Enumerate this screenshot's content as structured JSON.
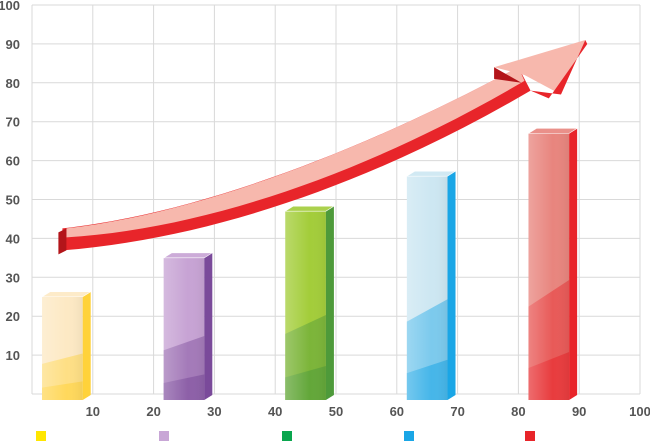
{
  "chart_data": {
    "type": "bar",
    "x_ticks": [
      "10",
      "20",
      "30",
      "40",
      "50",
      "60",
      "70",
      "80",
      "90",
      "100"
    ],
    "y_ticks": [
      "10",
      "20",
      "30",
      "40",
      "50",
      "60",
      "70",
      "80",
      "90",
      "100"
    ],
    "xlim": [
      0,
      100
    ],
    "ylim": [
      0,
      100
    ],
    "grid": true,
    "bars": [
      {
        "x_start": 1,
        "x_end": 9,
        "value": 25,
        "color": "#fde9c4",
        "accent": "#ffd23a"
      },
      {
        "x_start": 21,
        "x_end": 29,
        "value": 35,
        "color": "#c7a3d4",
        "accent": "#7a4a9a"
      },
      {
        "x_start": 41,
        "x_end": 49,
        "value": 47,
        "color": "#a3cd3a",
        "accent": "#4e9a3a"
      },
      {
        "x_start": 61,
        "x_end": 69,
        "value": 56,
        "color": "#cde7f2",
        "accent": "#1aa6e6"
      },
      {
        "x_start": 81,
        "x_end": 89,
        "value": 67,
        "color": "#e8857e",
        "accent": "#e8252a"
      }
    ],
    "trend_arrow": {
      "color": "#e8252a",
      "highlight": "#f7b8ad",
      "points": [
        [
          5,
          40
        ],
        [
          30,
          46
        ],
        [
          55,
          60
        ],
        [
          82,
          82
        ],
        [
          91,
          91
        ]
      ]
    },
    "legend": [
      {
        "color": "#ffe600"
      },
      {
        "color": "#c8a6d6"
      },
      {
        "color": "#0aa64e"
      },
      {
        "color": "#1aa6e6"
      },
      {
        "color": "#e8252a"
      }
    ]
  }
}
